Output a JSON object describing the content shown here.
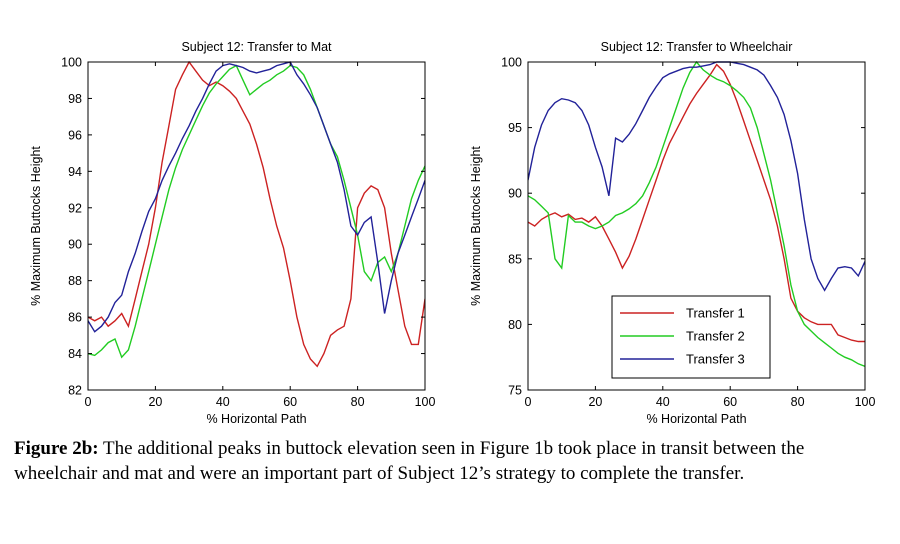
{
  "chart_data": [
    {
      "type": "line",
      "title": "Subject 12: Transfer to Mat",
      "xlabel": "% Horizontal Path",
      "ylabel": "% Maximum Buttocks Height",
      "xlim": [
        0,
        100
      ],
      "ylim": [
        82,
        100
      ],
      "xticks": [
        0,
        20,
        40,
        60,
        80,
        100
      ],
      "yticks": [
        82,
        84,
        86,
        88,
        90,
        92,
        94,
        96,
        98,
        100
      ],
      "series": [
        {
          "name": "Transfer 1",
          "color": "#cc2222",
          "x": [
            0,
            2,
            4,
            6,
            8,
            10,
            12,
            14,
            16,
            18,
            20,
            22,
            24,
            26,
            28,
            30,
            32,
            34,
            36,
            38,
            40,
            42,
            44,
            46,
            48,
            50,
            52,
            54,
            56,
            58,
            60,
            62,
            64,
            66,
            68,
            70,
            72,
            74,
            76,
            78,
            80,
            82,
            84,
            86,
            88,
            90,
            92,
            94,
            96,
            98,
            100
          ],
          "y": [
            86,
            85.8,
            86,
            85.5,
            85.8,
            86.2,
            85.5,
            87,
            88.5,
            90,
            92,
            94.5,
            96.5,
            98.5,
            99.3,
            100,
            99.5,
            99,
            98.7,
            98.9,
            98.7,
            98.4,
            98,
            97.3,
            96.6,
            95.5,
            94.2,
            92.5,
            91,
            89.8,
            88,
            86,
            84.5,
            83.7,
            83.3,
            84,
            85,
            85.3,
            85.5,
            87,
            92,
            92.8,
            93.2,
            93,
            92,
            89.5,
            87.5,
            85.5,
            84.5,
            84.5,
            87
          ]
        },
        {
          "name": "Transfer 2",
          "color": "#22cc22",
          "x": [
            0,
            2,
            4,
            6,
            8,
            10,
            12,
            14,
            16,
            18,
            20,
            22,
            24,
            26,
            28,
            30,
            32,
            34,
            36,
            38,
            40,
            42,
            44,
            46,
            48,
            50,
            52,
            54,
            56,
            58,
            60,
            62,
            64,
            66,
            68,
            70,
            72,
            74,
            76,
            78,
            80,
            82,
            84,
            86,
            88,
            90,
            92,
            94,
            96,
            98,
            100
          ],
          "y": [
            84,
            83.9,
            84.2,
            84.6,
            84.8,
            83.8,
            84.2,
            85.5,
            87,
            88.5,
            90,
            91.5,
            93,
            94.2,
            95.2,
            96,
            96.8,
            97.6,
            98.3,
            98.8,
            99.2,
            99.6,
            99.8,
            99,
            98.2,
            98.5,
            98.8,
            99,
            99.3,
            99.5,
            99.8,
            99.7,
            99.3,
            98.5,
            97.5,
            96.5,
            95.5,
            94.8,
            93.5,
            92,
            90.5,
            88.5,
            88,
            89,
            89.3,
            88.5,
            89.5,
            91,
            92.5,
            93.5,
            94.3
          ]
        },
        {
          "name": "Transfer 3",
          "color": "#222299",
          "x": [
            0,
            2,
            4,
            6,
            8,
            10,
            12,
            14,
            16,
            18,
            20,
            22,
            24,
            26,
            28,
            30,
            32,
            34,
            36,
            38,
            40,
            42,
            44,
            46,
            48,
            50,
            52,
            54,
            56,
            58,
            60,
            62,
            64,
            66,
            68,
            70,
            72,
            74,
            76,
            78,
            80,
            82,
            84,
            86,
            88,
            90,
            92,
            94,
            96,
            98,
            100
          ],
          "y": [
            85.8,
            85.2,
            85.5,
            86,
            86.8,
            87.2,
            88.5,
            89.5,
            90.7,
            91.8,
            92.5,
            93.5,
            94.3,
            95,
            95.8,
            96.5,
            97.3,
            98,
            98.8,
            99.5,
            99.8,
            99.9,
            99.8,
            99.7,
            99.5,
            99.4,
            99.5,
            99.6,
            99.8,
            99.9,
            100,
            99.3,
            98.8,
            98.2,
            97.5,
            96.5,
            95.5,
            94.5,
            93,
            91,
            90.5,
            91.2,
            91.5,
            89,
            86.2,
            88,
            89.5,
            90.5,
            91.5,
            92.5,
            93.5
          ]
        }
      ]
    },
    {
      "type": "line",
      "title": "Subject 12: Transfer to Wheelchair",
      "xlabel": "% Horizontal Path",
      "ylabel": "% Maximum Buttocks Height",
      "xlim": [
        0,
        100
      ],
      "ylim": [
        75,
        100
      ],
      "xticks": [
        0,
        20,
        40,
        60,
        80,
        100
      ],
      "yticks": [
        75,
        80,
        85,
        90,
        95,
        100
      ],
      "legend": "lower-right",
      "series": [
        {
          "name": "Transfer 1",
          "color": "#cc2222",
          "x": [
            0,
            2,
            4,
            6,
            8,
            10,
            12,
            14,
            16,
            18,
            20,
            22,
            24,
            26,
            28,
            30,
            32,
            34,
            36,
            38,
            40,
            42,
            44,
            46,
            48,
            50,
            52,
            54,
            56,
            58,
            60,
            62,
            64,
            66,
            68,
            70,
            72,
            74,
            76,
            78,
            80,
            82,
            84,
            86,
            88,
            90,
            92,
            94,
            96,
            98,
            100
          ],
          "y": [
            87.8,
            87.5,
            88,
            88.3,
            88.5,
            88.2,
            88.4,
            88,
            88.1,
            87.8,
            88.2,
            87.5,
            86.5,
            85.5,
            84.3,
            85.2,
            86.5,
            88,
            89.5,
            91,
            92.5,
            93.8,
            94.8,
            95.8,
            96.8,
            97.6,
            98.3,
            99,
            99.8,
            99.3,
            98.3,
            97,
            95.5,
            94,
            92.5,
            91,
            89.5,
            87.5,
            85,
            82,
            81,
            80.5,
            80.2,
            80,
            80,
            80,
            79.2,
            79,
            78.8,
            78.7,
            78.7
          ]
        },
        {
          "name": "Transfer 2",
          "color": "#22cc22",
          "x": [
            0,
            2,
            4,
            6,
            8,
            10,
            12,
            14,
            16,
            18,
            20,
            22,
            24,
            26,
            28,
            30,
            32,
            34,
            36,
            38,
            40,
            42,
            44,
            46,
            48,
            50,
            52,
            54,
            56,
            58,
            60,
            62,
            64,
            66,
            68,
            70,
            72,
            74,
            76,
            78,
            80,
            82,
            84,
            86,
            88,
            90,
            92,
            94,
            96,
            98,
            100
          ],
          "y": [
            89.8,
            89.5,
            89,
            88.5,
            85,
            84.3,
            88.3,
            87.8,
            87.8,
            87.5,
            87.3,
            87.5,
            87.8,
            88.3,
            88.5,
            88.8,
            89.2,
            89.8,
            90.8,
            92,
            93.5,
            95,
            96.5,
            98,
            99.2,
            100,
            99.4,
            99,
            98.7,
            98.5,
            98.2,
            97.8,
            97.3,
            96.5,
            95,
            93,
            91,
            88.5,
            86,
            83,
            81,
            80,
            79.5,
            79,
            78.6,
            78.2,
            77.8,
            77.5,
            77.3,
            77,
            76.8
          ]
        },
        {
          "name": "Transfer 3",
          "color": "#222299",
          "x": [
            0,
            2,
            4,
            6,
            8,
            10,
            12,
            14,
            16,
            18,
            20,
            22,
            24,
            26,
            28,
            30,
            32,
            34,
            36,
            38,
            40,
            42,
            44,
            46,
            48,
            50,
            52,
            54,
            56,
            58,
            60,
            62,
            64,
            66,
            68,
            70,
            72,
            74,
            76,
            78,
            80,
            82,
            84,
            86,
            88,
            90,
            92,
            94,
            96,
            98,
            100
          ],
          "y": [
            91,
            93.5,
            95.2,
            96.3,
            96.9,
            97.2,
            97.1,
            96.9,
            96.3,
            95.2,
            93.5,
            92,
            89.8,
            94.2,
            93.9,
            94.5,
            95.3,
            96.3,
            97.3,
            98.1,
            98.8,
            99.1,
            99.3,
            99.5,
            99.6,
            99.6,
            99.7,
            99.8,
            100,
            100,
            100,
            99.9,
            99.8,
            99.6,
            99.4,
            99,
            98.2,
            97.3,
            96,
            94,
            91.5,
            88,
            85,
            83.5,
            82.6,
            83.5,
            84.3,
            84.4,
            84.3,
            83.7,
            84.8
          ]
        }
      ]
    }
  ],
  "caption": {
    "label": "Figure 2b:",
    "text": " The additional peaks in buttock elevation seen in Figure 1b took place in transit between the wheelchair and mat and were an important part of Subject 12’s strategy to complete the transfer."
  }
}
